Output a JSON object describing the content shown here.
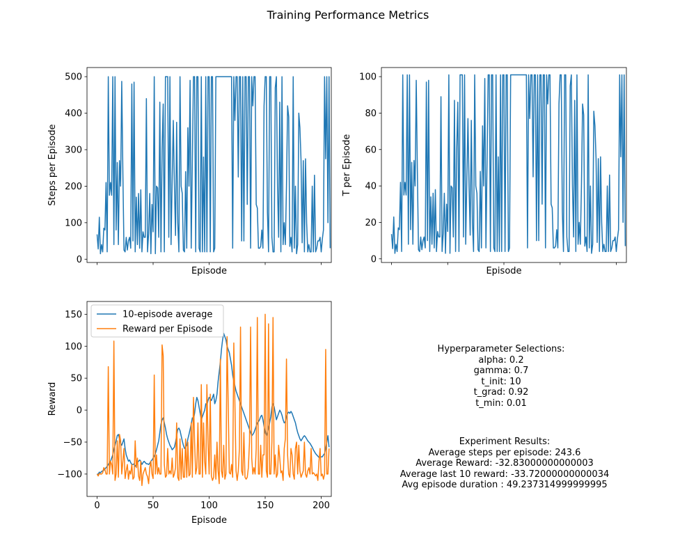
{
  "figure": {
    "title": "Training Performance Metrics"
  },
  "chart_data": [
    {
      "id": "steps",
      "type": "line",
      "xlabel": "Episode",
      "ylabel": "Steps per Episode",
      "xlim": [
        -9,
        209
      ],
      "ylim": [
        -9,
        525
      ],
      "x_ticks": [
        0,
        50,
        100,
        150,
        200
      ],
      "x_tick_labels_visible": false,
      "y_ticks": [
        0,
        100,
        200,
        300,
        400,
        500
      ],
      "grid": false,
      "series": [
        {
          "color": "#1f77b4",
          "values": [
            68,
            28,
            115,
            15,
            40,
            20,
            85,
            80,
            210,
            20,
            500,
            175,
            210,
            175,
            500,
            40,
            500,
            80,
            265,
            40,
            270,
            200,
            487,
            240,
            25,
            20,
            60,
            25,
            50,
            60,
            30,
            480,
            50,
            485,
            20,
            170,
            40,
            180,
            30,
            190,
            20,
            75,
            60,
            60,
            440,
            20,
            70,
            180,
            15,
            150,
            75,
            500,
            15,
            200,
            195,
            60,
            430,
            20,
            300,
            425,
            20,
            500,
            500,
            500,
            60,
            500,
            40,
            215,
            380,
            200,
            65,
            375,
            100,
            20,
            500,
            200,
            180,
            25,
            20,
            240,
            30,
            360,
            200,
            490,
            30,
            265,
            500,
            500,
            20,
            500,
            500,
            30,
            20,
            500,
            20,
            280,
            20,
            500,
            20,
            500,
            500,
            20,
            500,
            500,
            20,
            30,
            500,
            500,
            500,
            500,
            500,
            500,
            500,
            500,
            500,
            500,
            500,
            500,
            500,
            500,
            500,
            30,
            500,
            380,
            500,
            500,
            225,
            500,
            500,
            50,
            500,
            50,
            500,
            500,
            150,
            500,
            500,
            30,
            500,
            420,
            500,
            500,
            150,
            140,
            30,
            30,
            35,
            80,
            30,
            420,
            500,
            500,
            130,
            20,
            500,
            500,
            60,
            20,
            20,
            470,
            500,
            200,
            60,
            430,
            20,
            500,
            40,
            100,
            40,
            200,
            420,
            390,
            35,
            60,
            20,
            500,
            30,
            200,
            15,
            40,
            400,
            360,
            270,
            45,
            270,
            20,
            275,
            100,
            20,
            40,
            20,
            20,
            200,
            20,
            230,
            20,
            30,
            50,
            50,
            60,
            20,
            55,
            80,
            500,
            275,
            500,
            100,
            500,
            30
          ]
        }
      ]
    },
    {
      "id": "temperature",
      "type": "line",
      "xlabel": "Episode",
      "ylabel": "T per Episode",
      "xlim": [
        -9,
        209
      ],
      "ylim": [
        -2,
        105
      ],
      "x_ticks": [
        0,
        50,
        100,
        150,
        200
      ],
      "x_tick_labels_visible": false,
      "y_ticks": [
        0,
        20,
        40,
        60,
        80,
        100
      ],
      "grid": false,
      "series": [
        {
          "color": "#1f77b4",
          "values": [
            13.6,
            5.6,
            23,
            3,
            8,
            4,
            17,
            16,
            42,
            4,
            101,
            35,
            42,
            35,
            101,
            8,
            101,
            16,
            53,
            8,
            54,
            40,
            98,
            48,
            5,
            4,
            12,
            5,
            10,
            12,
            6,
            97,
            10,
            98,
            4,
            34,
            8,
            36,
            6,
            38,
            4,
            15,
            12,
            12,
            89,
            4,
            14,
            36,
            3,
            30,
            15,
            101,
            3,
            40,
            39,
            12,
            87,
            4,
            60,
            86,
            4,
            101,
            101,
            101,
            12,
            101,
            8,
            43,
            77,
            40,
            13,
            76,
            20,
            4,
            101,
            40,
            36,
            5,
            4,
            48,
            6,
            73,
            40,
            99,
            6,
            53,
            101,
            101,
            4,
            101,
            101,
            6,
            4,
            101,
            4,
            56,
            4,
            101,
            4,
            101,
            101,
            4,
            101,
            101,
            4,
            6,
            101,
            101,
            101,
            101,
            101,
            101,
            101,
            101,
            101,
            101,
            101,
            101,
            101,
            101,
            101,
            6,
            101,
            77,
            101,
            101,
            45,
            101,
            101,
            10,
            101,
            10,
            101,
            101,
            30,
            101,
            101,
            6,
            101,
            85,
            101,
            101,
            30,
            28,
            6,
            6,
            7,
            16,
            6,
            85,
            101,
            101,
            26,
            4,
            101,
            101,
            12,
            4,
            4,
            95,
            101,
            40,
            12,
            87,
            4,
            101,
            8,
            20,
            8,
            40,
            85,
            79,
            7,
            12,
            4,
            101,
            6,
            40,
            3,
            8,
            81,
            73,
            55,
            9,
            55,
            4,
            56,
            20,
            4,
            8,
            4,
            4,
            40,
            4,
            46,
            4,
            6,
            10,
            10,
            12,
            4,
            11,
            16,
            101,
            56,
            101,
            20,
            101,
            7
          ]
        }
      ]
    },
    {
      "id": "reward",
      "type": "line",
      "xlabel": "Episode",
      "ylabel": "Reward",
      "xlim": [
        -9,
        209
      ],
      "ylim": [
        -135,
        170
      ],
      "x_ticks": [
        0,
        50,
        100,
        150,
        200
      ],
      "x_tick_labels": [
        "0",
        "50",
        "100",
        "150",
        "200"
      ],
      "y_ticks": [
        -100,
        -50,
        0,
        50,
        100,
        150
      ],
      "y_tick_labels": [
        "−100",
        "−50",
        "0",
        "50",
        "100",
        "150"
      ],
      "grid": false,
      "legend": {
        "placement": "upper-left"
      },
      "series": [
        {
          "name": "10-episode average",
          "color": "#1f77b4",
          "values": [
            -100,
            -100,
            -97,
            -98,
            -96,
            -95,
            -94,
            -92,
            -90,
            -88,
            -85,
            -82,
            -80,
            -75,
            -70,
            -62,
            -55,
            -48,
            -40,
            -38,
            -45,
            -52,
            -55,
            -50,
            -45,
            -60,
            -70,
            -75,
            -80,
            -78,
            -82,
            -85,
            -85,
            -84,
            -88,
            -85,
            -82,
            -80,
            -78,
            -80,
            -85,
            -82,
            -80,
            -82,
            -84,
            -84,
            -85,
            -83,
            -80,
            -78,
            -75,
            -72,
            -68,
            -62,
            -55,
            -48,
            -35,
            -22,
            -15,
            -12,
            -20,
            -28,
            -38,
            -45,
            -50,
            -55,
            -58,
            -62,
            -60,
            -58,
            -50,
            -40,
            -30,
            -28,
            -32,
            -40,
            -48,
            -55,
            -60,
            -58,
            -55,
            -45,
            -38,
            -30,
            -22,
            -12,
            -15,
            -5,
            10,
            20,
            15,
            5,
            -5,
            -15,
            -10,
            -5,
            0,
            10,
            8,
            15,
            20,
            18,
            15,
            20,
            25,
            10,
            15,
            25,
            45,
            60,
            75,
            95,
            110,
            120,
            115,
            110,
            100,
            95,
            90,
            80,
            70,
            55,
            45,
            38,
            30,
            25,
            20,
            15,
            10,
            5,
            0,
            -5,
            -10,
            -15,
            -20,
            -25,
            -30,
            -35,
            -40,
            -38,
            -35,
            -30,
            -25,
            -20,
            -18,
            -15,
            -10,
            -8,
            -15,
            -25,
            -35,
            -40,
            -35,
            -28,
            -20,
            -10,
            5,
            10,
            5,
            -5,
            -15,
            -10,
            -5,
            0,
            -3,
            -8,
            -15,
            -20,
            -18,
            -10,
            -5,
            -3,
            -5,
            -2,
            -5,
            -10,
            -15,
            -20,
            -28,
            -35,
            -40,
            -45,
            -48,
            -45,
            -42,
            -40,
            -42,
            -45,
            -48,
            -50,
            -52,
            -55,
            -58,
            -62,
            -65,
            -68,
            -70,
            -72,
            -74,
            -74,
            -73,
            -73,
            -70,
            -68,
            -60,
            -50,
            -40,
            -58
          ]
        },
        {
          "name": "Reward per Episode",
          "color": "#ff7f0e",
          "values": [
            -100,
            -103,
            -99,
            -100,
            -100,
            -98,
            -90,
            -93,
            -100,
            -100,
            68,
            -100,
            -80,
            -85,
            -100,
            108,
            -110,
            -100,
            -48,
            -105,
            -38,
            -48,
            -100,
            -80,
            -60,
            -107,
            -95,
            -85,
            -108,
            -95,
            -100,
            -85,
            -108,
            -105,
            -48,
            -90,
            -75,
            -103,
            -110,
            -80,
            -118,
            -100,
            -95,
            -90,
            -100,
            -104,
            -115,
            -90,
            -80,
            -100,
            -107,
            55,
            -100,
            -70,
            -100,
            -90,
            -100,
            -100,
            102,
            85,
            -85,
            -105,
            -102,
            -60,
            -100,
            -95,
            -100,
            -75,
            -105,
            -100,
            -90,
            -20,
            -105,
            -110,
            -45,
            -108,
            -60,
            -105,
            -105,
            -45,
            -105,
            -50,
            -103,
            -100,
            -20,
            -105,
            20,
            -50,
            -100,
            -90,
            -20,
            -100,
            -100,
            40,
            -105,
            -20,
            -80,
            -100,
            40,
            -50,
            -100,
            25,
            -103,
            -110,
            -105,
            -70,
            -108,
            -50,
            -95,
            -115,
            80,
            -95,
            -105,
            -55,
            -108,
            -100,
            115,
            10,
            -98,
            -100,
            -85,
            -105,
            105,
            10,
            -95,
            -110,
            -95,
            -60,
            130,
            -95,
            -102,
            -35,
            -105,
            -108,
            -105,
            -90,
            -50,
            130,
            -75,
            -100,
            -90,
            -100,
            -60,
            145,
            -100,
            -100,
            -55,
            -105,
            -70,
            -70,
            150,
            -95,
            -105,
            135,
            -100,
            -100,
            -50,
            145,
            -100,
            -70,
            -105,
            -100,
            -55,
            -75,
            -98,
            -95,
            -110,
            -60,
            -45,
            80,
            -70,
            -100,
            -105,
            -60,
            -70,
            -100,
            -108,
            -60,
            -50,
            -100,
            -55,
            -95,
            -105,
            -100,
            -95,
            -50,
            -100,
            -105,
            -95,
            -90,
            -100,
            -60,
            -100,
            -98,
            -100,
            -103,
            -100,
            -110,
            -80,
            -60,
            -103,
            -100,
            -108,
            -100,
            95,
            -100,
            -100,
            -60
          ]
        }
      ]
    }
  ],
  "text_panel": {
    "hyperparameters": {
      "title": "Hyperparameter Selections:",
      "lines": [
        "alpha: 0.2",
        "gamma: 0.7",
        "t_init: 10",
        "t_grad: 0.92",
        "t_min: 0.01"
      ]
    },
    "results": {
      "title": "Experiment Results:",
      "lines": [
        "Average steps per episode: 243.6",
        "Average Reward: -32.83000000000003",
        "Average last 10 reward: -33.72000000000034",
        "Avg episode duration : 49.237314999999995"
      ]
    }
  }
}
